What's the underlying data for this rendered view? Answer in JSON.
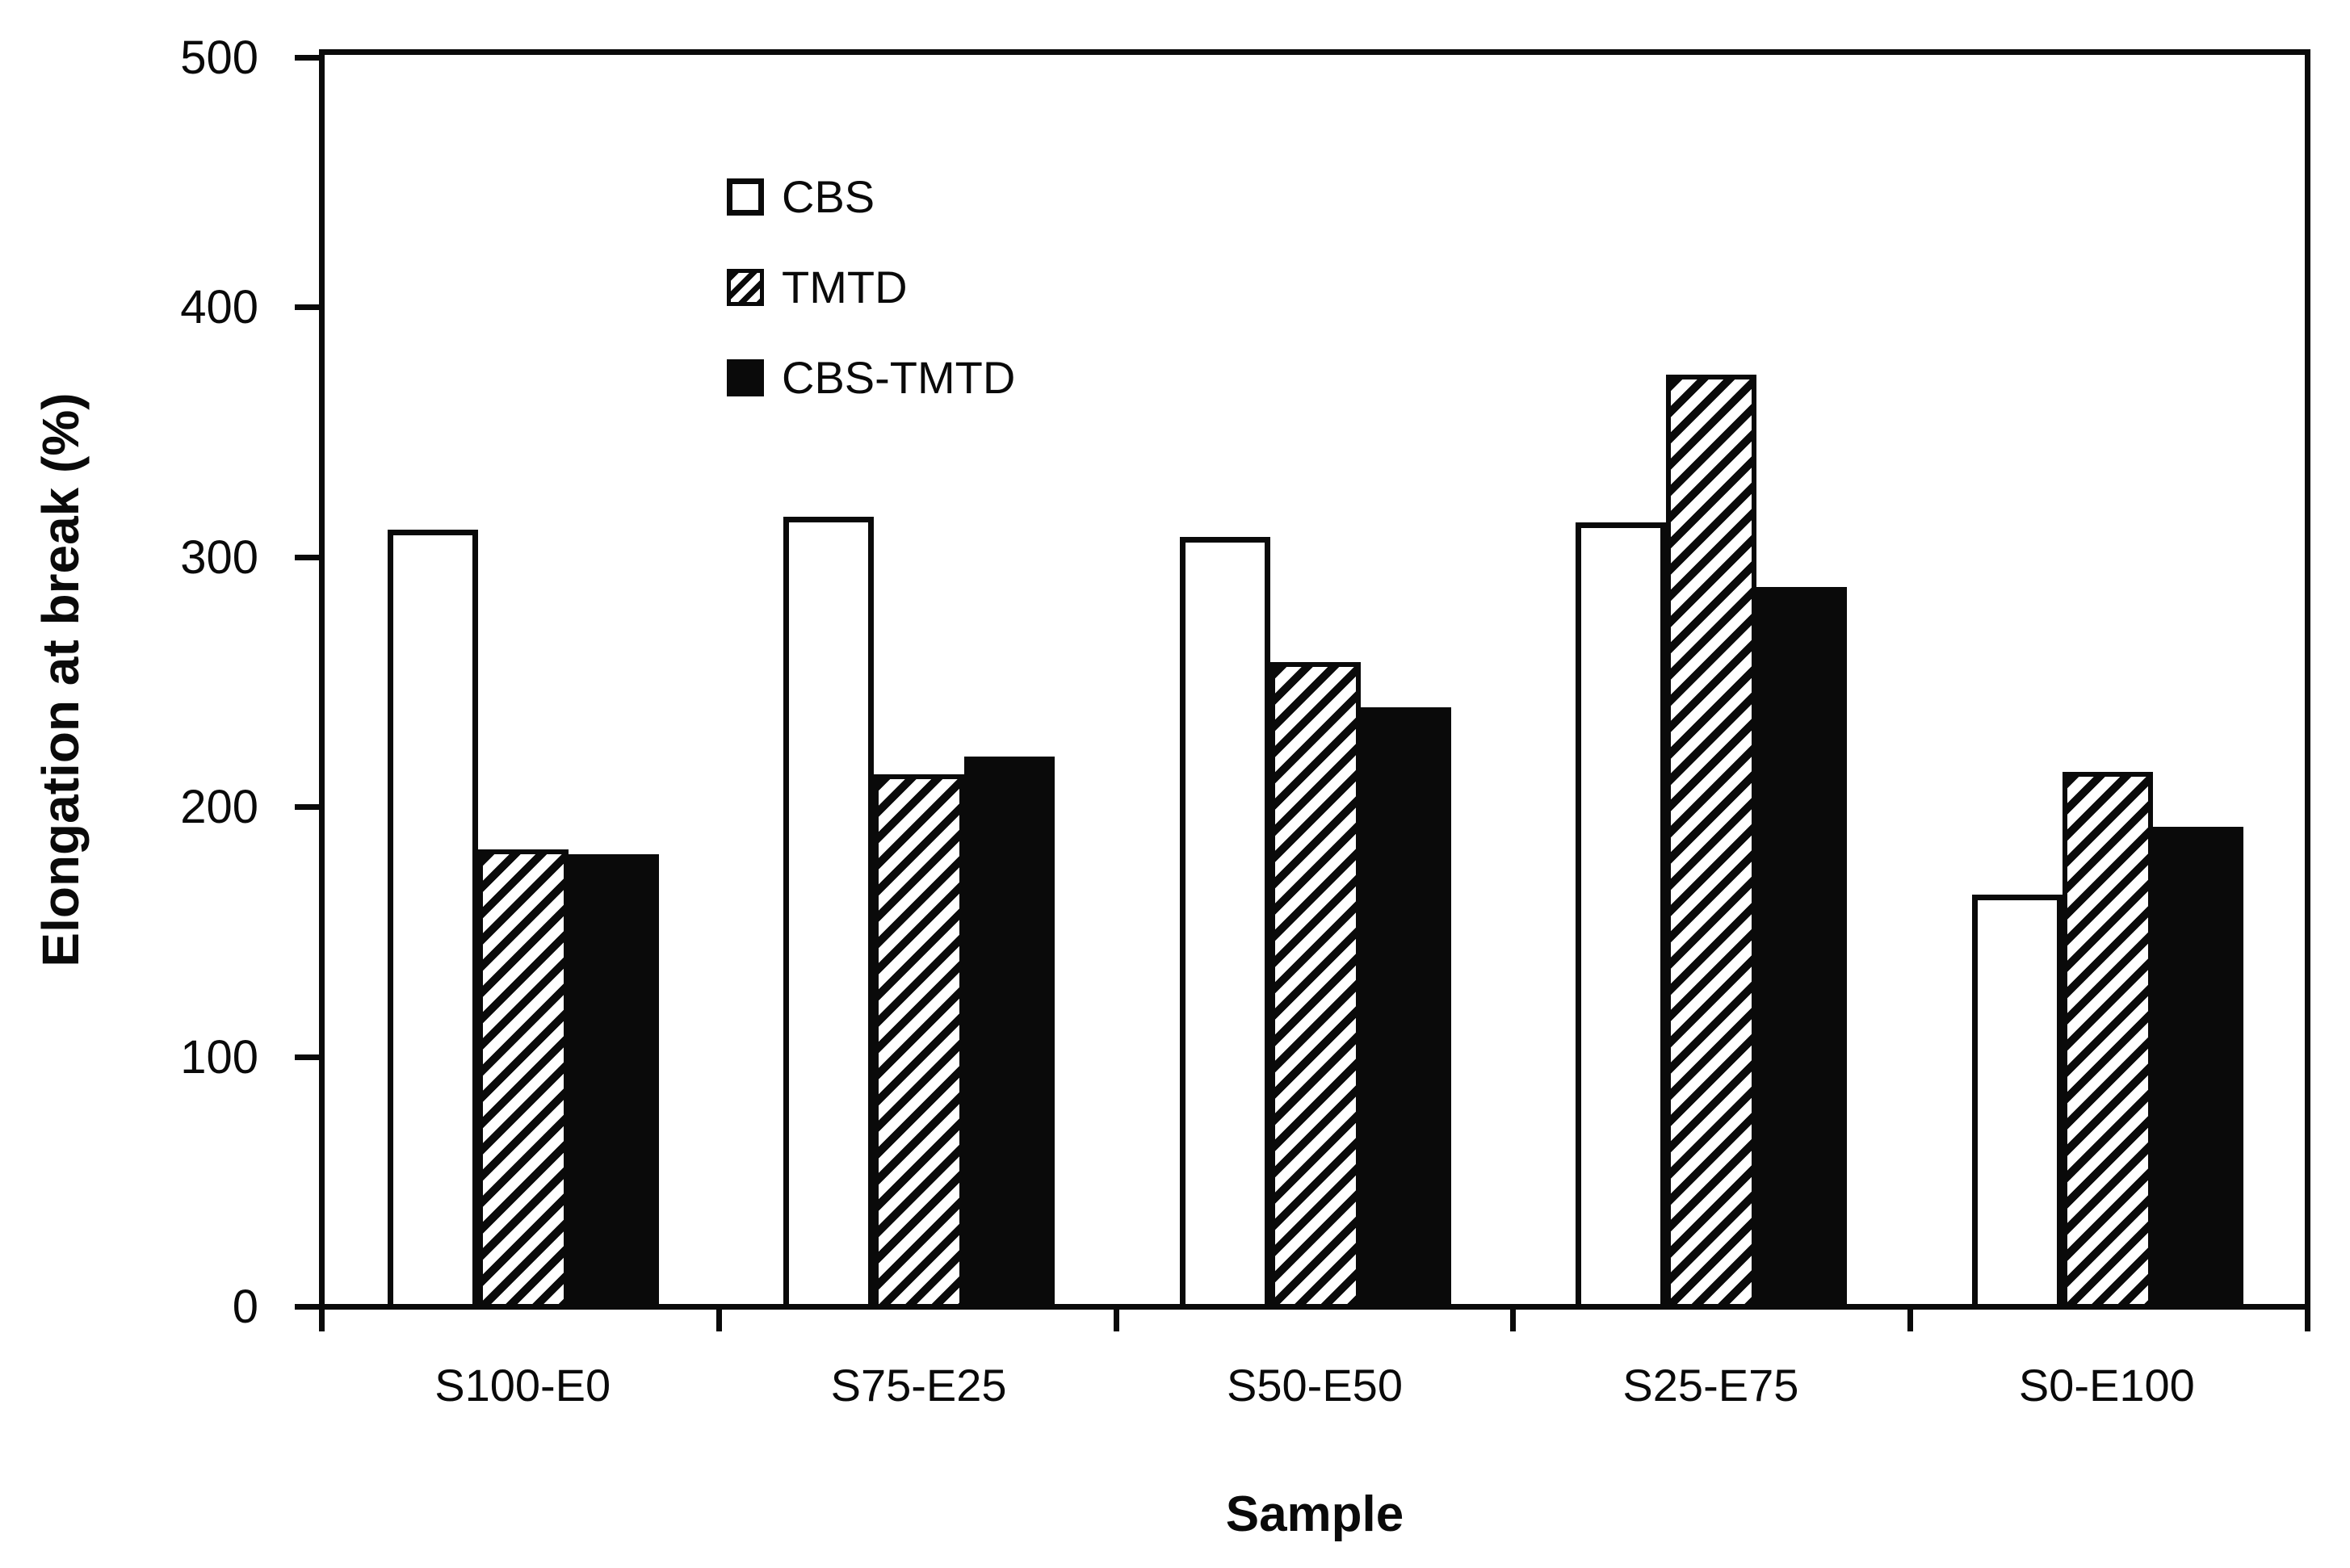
{
  "chart_data": {
    "type": "bar",
    "title": "",
    "xlabel": "Sample",
    "ylabel": "Elongation at break (%)",
    "categories": [
      "S100-E0",
      "S75-E25",
      "S50-E50",
      "S25-E75",
      "S0-E100"
    ],
    "series": [
      {
        "name": "CBS",
        "pattern": "white",
        "values": [
          310,
          315,
          307,
          313,
          164
        ]
      },
      {
        "name": "TMTD",
        "pattern": "hatch",
        "values": [
          182,
          212,
          257,
          372,
          213
        ]
      },
      {
        "name": "CBS-TMTD",
        "pattern": "solid",
        "values": [
          180,
          219,
          239,
          287,
          191
        ]
      }
    ],
    "ylim": [
      0,
      500
    ],
    "yticks": [
      0,
      100,
      200,
      300,
      400,
      500
    ],
    "ytick_labels": [
      "0",
      "100",
      "200",
      "300",
      "400",
      "500"
    ],
    "legend_position": "top-left-inside",
    "legend_entries": [
      "CBS",
      "TMTD",
      "CBS-TMTD"
    ],
    "grid": false,
    "bar_outline_color": "#0a0a0a",
    "background_color": "#ffffff"
  }
}
